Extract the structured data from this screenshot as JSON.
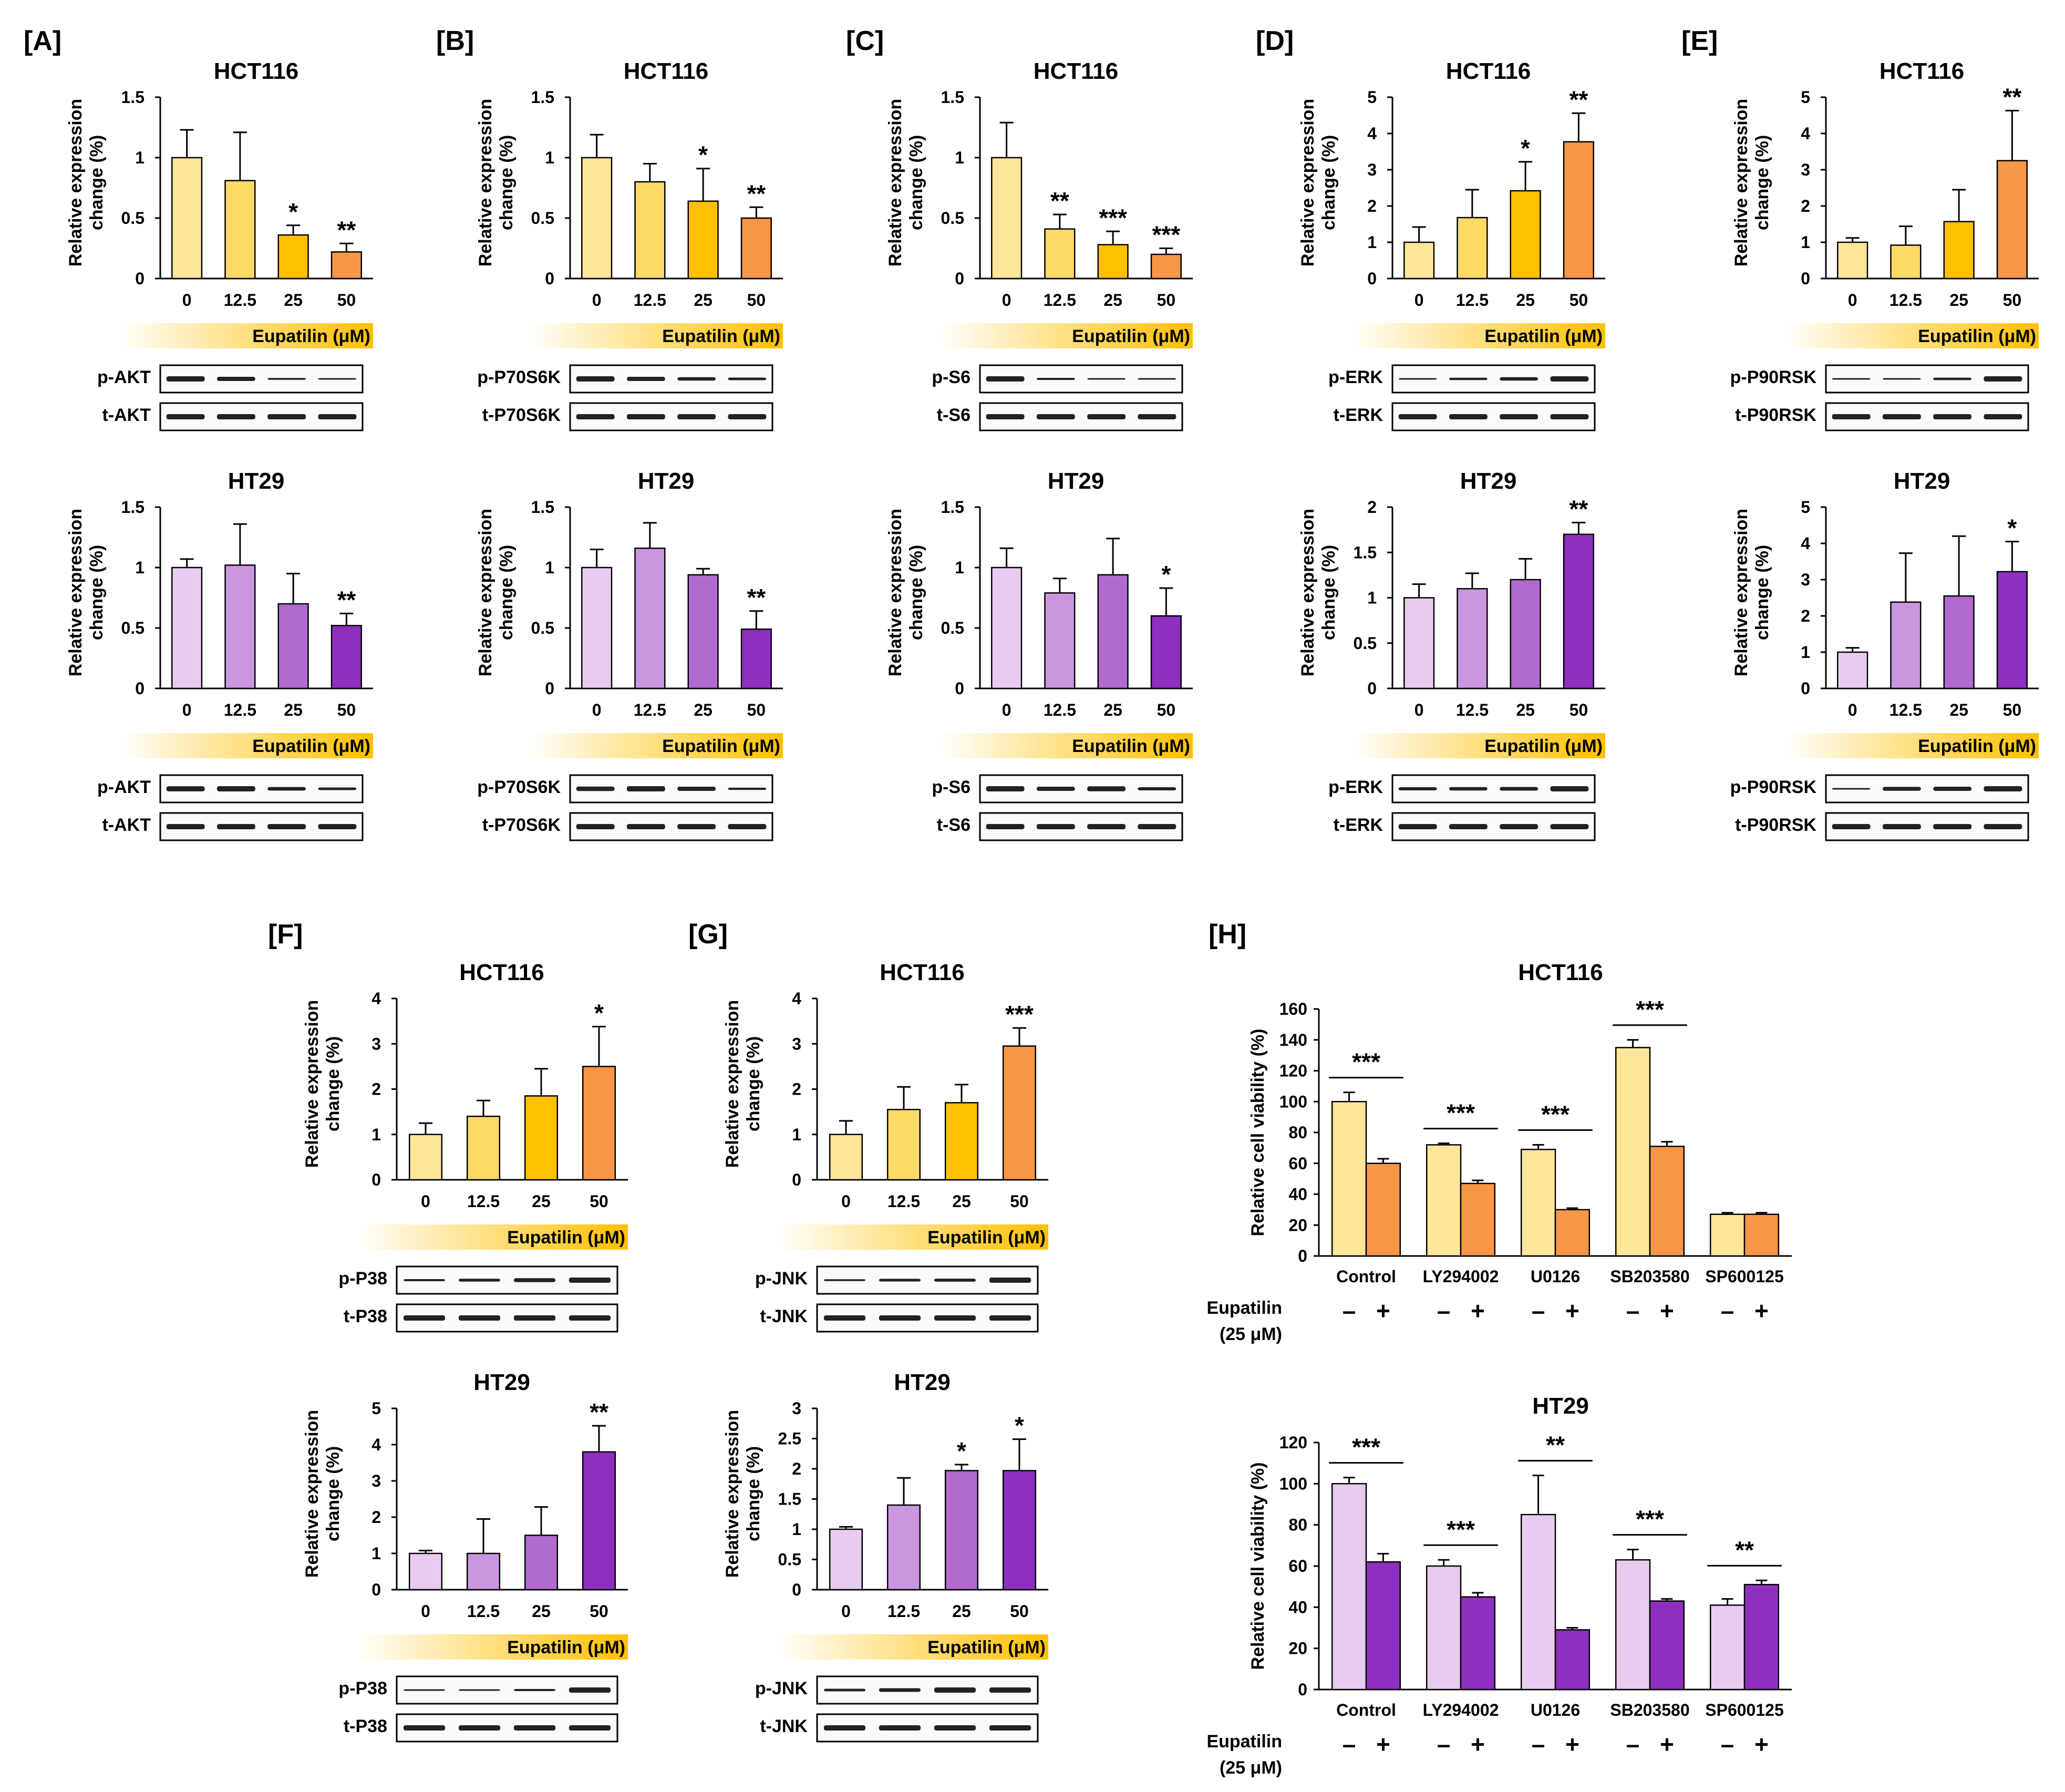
{
  "palettes": {
    "hct": [
      "#FFE69A",
      "#FFD966",
      "#FFC000",
      "#F79646"
    ],
    "ht": [
      "#E8CCF0",
      "#CB95E0",
      "#B06AD0",
      "#8E2FC0"
    ],
    "via_hct": [
      "#FFE69A",
      "#F79646"
    ],
    "via_ht": [
      "#E8CCF0",
      "#8E2FC0"
    ],
    "gradient": [
      "#FFFFFF",
      "#FFC000"
    ]
  },
  "treatment": {
    "label": "Eupatilin (μM)",
    "viability_label_line1": "Eupatilin",
    "viability_label_line2": "(25 μM)",
    "minus": "–",
    "plus": "+"
  },
  "chart_data": [
    {
      "id": "A1",
      "panel": "[A]",
      "type": "bar",
      "title": "HCT116",
      "ylabel": "Relative expression change (%)",
      "categories": [
        "0",
        "12.5",
        "25",
        "50"
      ],
      "values": [
        1.0,
        0.81,
        0.36,
        0.22
      ],
      "errors": [
        0.23,
        0.4,
        0.08,
        0.07
      ],
      "stars": [
        "",
        "",
        "*",
        "**"
      ],
      "ylim": [
        0,
        1.5
      ],
      "yticks": [
        "0",
        "0.5",
        "1",
        "1.5"
      ],
      "palette": "hct",
      "blots": [
        "p-AKT",
        "t-AKT"
      ]
    },
    {
      "id": "B1",
      "panel": "[B]",
      "type": "bar",
      "title": "HCT116",
      "ylabel": "Relative expression change (%)",
      "categories": [
        "0",
        "12.5",
        "25",
        "50"
      ],
      "values": [
        1.0,
        0.8,
        0.64,
        0.5
      ],
      "errors": [
        0.19,
        0.15,
        0.27,
        0.09
      ],
      "stars": [
        "",
        "",
        "*",
        "**"
      ],
      "ylim": [
        0,
        1.5
      ],
      "yticks": [
        "0",
        "0.5",
        "1",
        "1.5"
      ],
      "palette": "hct",
      "blots": [
        "p-P70S6K",
        "t-P70S6K"
      ]
    },
    {
      "id": "C1",
      "panel": "[C]",
      "type": "bar",
      "title": "HCT116",
      "ylabel": "Relative expression change (%)",
      "categories": [
        "0",
        "12.5",
        "25",
        "50"
      ],
      "values": [
        1.0,
        0.41,
        0.28,
        0.2
      ],
      "errors": [
        0.29,
        0.12,
        0.11,
        0.05
      ],
      "stars": [
        "",
        "**",
        "***",
        "***"
      ],
      "ylim": [
        0,
        1.5
      ],
      "yticks": [
        "0",
        "0.5",
        "1",
        "1.5"
      ],
      "palette": "hct",
      "blots": [
        "p-S6",
        "t-S6"
      ]
    },
    {
      "id": "D1",
      "panel": "[D]",
      "type": "bar",
      "title": "HCT116",
      "ylabel": "Relative expression change (%)",
      "categories": [
        "0",
        "12.5",
        "25",
        "50"
      ],
      "values": [
        1.0,
        1.68,
        2.42,
        3.77
      ],
      "errors": [
        0.42,
        0.77,
        0.8,
        0.79
      ],
      "stars": [
        "",
        "",
        "*",
        "**"
      ],
      "ylim": [
        0,
        5
      ],
      "yticks": [
        "0",
        "1",
        "2",
        "3",
        "4",
        "5"
      ],
      "palette": "hct",
      "blots": [
        "p-ERK",
        "t-ERK"
      ]
    },
    {
      "id": "E1",
      "panel": "[E]",
      "type": "bar",
      "title": "HCT116",
      "ylabel": "Relative expression change (%)",
      "categories": [
        "0",
        "12.5",
        "25",
        "50"
      ],
      "values": [
        1.0,
        0.92,
        1.57,
        3.25
      ],
      "errors": [
        0.12,
        0.52,
        0.88,
        1.38
      ],
      "stars": [
        "",
        "",
        "",
        "**"
      ],
      "ylim": [
        0,
        5
      ],
      "yticks": [
        "0",
        "1",
        "2",
        "3",
        "4",
        "5"
      ],
      "palette": "hct",
      "blots": [
        "p-P90RSK",
        "t-P90RSK"
      ]
    },
    {
      "id": "A2",
      "panel": "",
      "type": "bar",
      "title": "HT29",
      "ylabel": "Relative expression change (%)",
      "categories": [
        "0",
        "12.5",
        "25",
        "50"
      ],
      "values": [
        1.0,
        1.02,
        0.7,
        0.52
      ],
      "errors": [
        0.07,
        0.34,
        0.25,
        0.1
      ],
      "stars": [
        "",
        "",
        "",
        "**"
      ],
      "ylim": [
        0,
        1.5
      ],
      "yticks": [
        "0",
        "0.5",
        "1",
        "1.5"
      ],
      "palette": "ht",
      "blots": [
        "p-AKT",
        "t-AKT"
      ]
    },
    {
      "id": "B2",
      "panel": "",
      "type": "bar",
      "title": "HT29",
      "ylabel": "Relative expression change (%)",
      "categories": [
        "0",
        "12.5",
        "25",
        "50"
      ],
      "values": [
        1.0,
        1.16,
        0.94,
        0.49
      ],
      "errors": [
        0.15,
        0.21,
        0.05,
        0.15
      ],
      "stars": [
        "",
        "",
        "",
        "**"
      ],
      "ylim": [
        0,
        1.5
      ],
      "yticks": [
        "0",
        "0.5",
        "1",
        "1.5"
      ],
      "palette": "ht",
      "blots": [
        "p-P70S6K",
        "t-P70S6K"
      ]
    },
    {
      "id": "C2",
      "panel": "",
      "type": "bar",
      "title": "HT29",
      "ylabel": "Relative expression change (%)",
      "categories": [
        "0",
        "12.5",
        "25",
        "50"
      ],
      "values": [
        1.0,
        0.79,
        0.94,
        0.6
      ],
      "errors": [
        0.16,
        0.12,
        0.3,
        0.23
      ],
      "stars": [
        "",
        "",
        "",
        "*"
      ],
      "ylim": [
        0,
        1.5
      ],
      "yticks": [
        "0",
        "0.5",
        "1",
        "1.5"
      ],
      "palette": "ht",
      "blots": [
        "p-S6",
        "t-S6"
      ]
    },
    {
      "id": "D2",
      "panel": "",
      "type": "bar",
      "title": "HT29",
      "ylabel": "Relative expression change (%)",
      "categories": [
        "0",
        "12.5",
        "25",
        "50"
      ],
      "values": [
        1.0,
        1.1,
        1.2,
        1.7
      ],
      "errors": [
        0.15,
        0.17,
        0.23,
        0.13
      ],
      "stars": [
        "",
        "",
        "",
        "**"
      ],
      "ylim": [
        0,
        2
      ],
      "yticks": [
        "0",
        "0.5",
        "1",
        "1.5",
        "2"
      ],
      "palette": "ht",
      "blots": [
        "p-ERK",
        "t-ERK"
      ]
    },
    {
      "id": "E2",
      "panel": "",
      "type": "bar",
      "title": "HT29",
      "ylabel": "Relative expression change (%)",
      "categories": [
        "0",
        "12.5",
        "25",
        "50"
      ],
      "values": [
        1.0,
        2.38,
        2.55,
        3.22
      ],
      "errors": [
        0.12,
        1.35,
        1.65,
        0.83
      ],
      "stars": [
        "",
        "",
        "",
        "*"
      ],
      "ylim": [
        0,
        5
      ],
      "yticks": [
        "0",
        "1",
        "2",
        "3",
        "4",
        "5"
      ],
      "palette": "ht",
      "blots": [
        "p-P90RSK",
        "t-P90RSK"
      ]
    },
    {
      "id": "F1",
      "panel": "[F]",
      "type": "bar",
      "title": "HCT116",
      "ylabel": "Relative expression change (%)",
      "categories": [
        "0",
        "12.5",
        "25",
        "50"
      ],
      "values": [
        1.0,
        1.4,
        1.85,
        2.5
      ],
      "errors": [
        0.25,
        0.35,
        0.6,
        0.88
      ],
      "stars": [
        "",
        "",
        "",
        "*"
      ],
      "ylim": [
        0,
        4
      ],
      "yticks": [
        "0",
        "1",
        "2",
        "3",
        "4"
      ],
      "palette": "hct",
      "blots": [
        "p-P38",
        "t-P38"
      ]
    },
    {
      "id": "G1",
      "panel": "[G]",
      "type": "bar",
      "title": "HCT116",
      "ylabel": "Relative expression change (%)",
      "categories": [
        "0",
        "12.5",
        "25",
        "50"
      ],
      "values": [
        1.0,
        1.55,
        1.7,
        2.95
      ],
      "errors": [
        0.3,
        0.5,
        0.4,
        0.4
      ],
      "stars": [
        "",
        "",
        "",
        "***"
      ],
      "ylim": [
        0,
        4
      ],
      "yticks": [
        "0",
        "1",
        "2",
        "3",
        "4"
      ],
      "palette": "hct",
      "blots": [
        "p-JNK",
        "t-JNK"
      ]
    },
    {
      "id": "F2",
      "panel": "",
      "type": "bar",
      "title": "HT29",
      "ylabel": "Relative expression change (%)",
      "categories": [
        "0",
        "12.5",
        "25",
        "50"
      ],
      "values": [
        1.0,
        1.0,
        1.5,
        3.8
      ],
      "errors": [
        0.08,
        0.95,
        0.78,
        0.72
      ],
      "stars": [
        "",
        "",
        "",
        "**"
      ],
      "ylim": [
        0,
        5
      ],
      "yticks": [
        "0",
        "1",
        "2",
        "3",
        "4",
        "5"
      ],
      "palette": "ht",
      "blots": [
        "p-P38",
        "t-P38"
      ]
    },
    {
      "id": "G2",
      "panel": "",
      "type": "bar",
      "title": "HT29",
      "ylabel": "Relative expression change (%)",
      "categories": [
        "0",
        "12.5",
        "25",
        "50"
      ],
      "values": [
        1.0,
        1.4,
        1.97,
        1.97
      ],
      "errors": [
        0.04,
        0.45,
        0.1,
        0.52
      ],
      "stars": [
        "",
        "",
        "*",
        "*"
      ],
      "ylim": [
        0,
        3
      ],
      "yticks": [
        "0",
        "0.5",
        "1",
        "1.5",
        "2",
        "2.5",
        "3"
      ],
      "palette": "ht",
      "blots": [
        "p-JNK",
        "t-JNK"
      ]
    },
    {
      "id": "H1",
      "panel": "[H]",
      "type": "bar",
      "title": "HCT116",
      "ylabel": "Relative cell viability (%)",
      "categories": [
        "Control",
        "LY294002",
        "U0126",
        "SB203580",
        "SP600125"
      ],
      "series": [
        {
          "name": "–",
          "values": [
            100,
            72,
            69,
            135,
            27
          ],
          "errors": [
            6,
            1,
            3,
            5,
            1
          ]
        },
        {
          "name": "+",
          "values": [
            60,
            47,
            30,
            71,
            27
          ],
          "errors": [
            3,
            2,
            1,
            3,
            1
          ]
        }
      ],
      "stars": [
        "***",
        "***",
        "***",
        "***",
        ""
      ],
      "ylim": [
        0,
        160
      ],
      "yticks": [
        "0",
        "20",
        "40",
        "60",
        "80",
        "100",
        "120",
        "140",
        "160"
      ],
      "palette": "via_hct"
    },
    {
      "id": "H2",
      "panel": "",
      "type": "bar",
      "title": "HT29",
      "ylabel": "Relative cell viability (%)",
      "categories": [
        "Control",
        "LY294002",
        "U0126",
        "SB203580",
        "SP600125"
      ],
      "series": [
        {
          "name": "–",
          "values": [
            100,
            60,
            85,
            63,
            41
          ],
          "errors": [
            3,
            3,
            19,
            5,
            3
          ]
        },
        {
          "name": "+",
          "values": [
            62,
            45,
            29,
            43,
            51
          ],
          "errors": [
            4,
            2,
            1,
            1,
            2
          ]
        }
      ],
      "stars": [
        "***",
        "***",
        "**",
        "***",
        "**"
      ],
      "ylim": [
        0,
        120
      ],
      "yticks": [
        "0",
        "20",
        "40",
        "60",
        "80",
        "100",
        "120"
      ],
      "palette": "via_ht"
    }
  ]
}
